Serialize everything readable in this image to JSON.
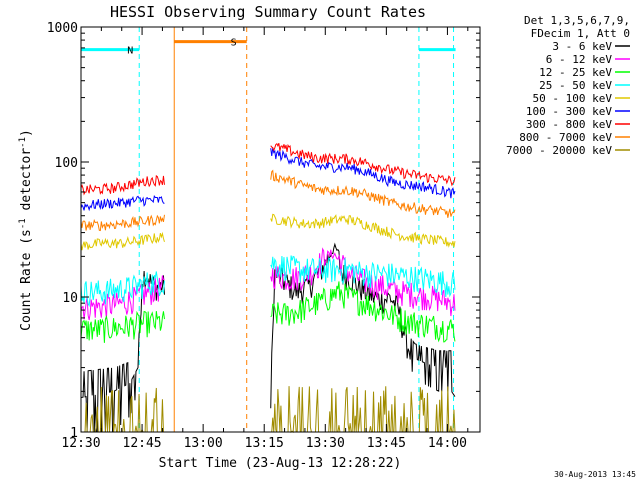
{
  "chart_data": {
    "type": "line",
    "title": "HESSI Observing Summary Count Rates",
    "xlabel": "Start Time (23-Aug-13 12:28:22)",
    "ylabel": "Count Rate (s",
    "ylabel_sup": "-1",
    "ylabel_tail": " detector",
    "ylabel_sup2": "-1",
    "ylabel_end": ")",
    "y_scale": "log",
    "ylim": [
      1,
      1000
    ],
    "xlim_minutes": [
      0,
      98
    ],
    "x_ticks": [
      {
        "label": "12:30",
        "m": 0
      },
      {
        "label": "12:45",
        "m": 15
      },
      {
        "label": "13:00",
        "m": 30
      },
      {
        "label": "13:15",
        "m": 45
      },
      {
        "label": "13:30",
        "m": 60
      },
      {
        "label": "13:45",
        "m": 75
      },
      {
        "label": "14:00",
        "m": 90
      }
    ],
    "y_ticks": [
      {
        "label": "1",
        "v": 1
      },
      {
        "label": "10",
        "v": 10
      },
      {
        "label": "100",
        "v": 100
      },
      {
        "label": "1000",
        "v": 1000
      }
    ],
    "legend_header": [
      "Det 1,3,5,6,7,9,",
      "FDecim 1, Att 0"
    ],
    "legend_placement": "right",
    "footer_date": "30-Aug-2013 13:45",
    "flags": [
      {
        "label": "N",
        "color": "#00ffff",
        "segments": [
          [
            0,
            14.3
          ],
          [
            83,
            92
          ]
        ],
        "level": 680
      },
      {
        "label": "S",
        "color": "#ff8000",
        "segments": [
          [
            22.9,
            40.7
          ]
        ],
        "level": 780
      }
    ],
    "night_bounds": [
      {
        "m": 14.3,
        "color": "#00ffff"
      },
      {
        "m": 83.0,
        "color": "#00ffff"
      },
      {
        "m": 91.5,
        "color": "#00ffff"
      },
      {
        "m": 40.7,
        "color": "#ff8000"
      }
    ],
    "saa_solid": [
      22.9
    ],
    "gap_minutes": [
      22.9,
      46.6
    ],
    "series": [
      {
        "name": "3 - 6 keV",
        "color": "#000000",
        "pre": [
          [
            0,
            1.8
          ],
          [
            8,
            2.0
          ],
          [
            12,
            2.3
          ],
          [
            14,
            3.0
          ],
          [
            15,
            14
          ],
          [
            16,
            15
          ],
          [
            17,
            13
          ],
          [
            18,
            12
          ],
          [
            19,
            12
          ],
          [
            20.5,
            12
          ]
        ],
        "post": [
          [
            46.6,
            1.5
          ],
          [
            47.5,
            15
          ],
          [
            50,
            13
          ],
          [
            53,
            11
          ],
          [
            56,
            12
          ],
          [
            59,
            16
          ],
          [
            61,
            20
          ],
          [
            62,
            23
          ],
          [
            63,
            22
          ],
          [
            64,
            15
          ],
          [
            66,
            14
          ],
          [
            68,
            12
          ],
          [
            70,
            11
          ],
          [
            72,
            10
          ],
          [
            74,
            9.5
          ],
          [
            76,
            10
          ],
          [
            78,
            8
          ],
          [
            80,
            4.5
          ],
          [
            82,
            3.5
          ],
          [
            85,
            3.2
          ],
          [
            88,
            3.0
          ],
          [
            91,
            3.0
          ],
          [
            92,
            2.8
          ]
        ]
      },
      {
        "name": "6 - 12 keV",
        "color": "#ff00ff",
        "pre": [
          [
            0,
            8.5
          ],
          [
            5,
            8.5
          ],
          [
            10,
            9
          ],
          [
            14,
            10
          ],
          [
            17,
            11
          ],
          [
            20.5,
            12
          ]
        ],
        "post": [
          [
            46.6,
            15
          ],
          [
            50,
            14
          ],
          [
            53,
            14
          ],
          [
            56,
            15
          ],
          [
            58,
            17
          ],
          [
            60,
            20
          ],
          [
            62,
            21
          ],
          [
            64,
            18
          ],
          [
            66,
            15
          ],
          [
            70,
            13
          ],
          [
            74,
            12
          ],
          [
            78,
            11
          ],
          [
            82,
            10.5
          ],
          [
            86,
            10
          ],
          [
            89,
            9.5
          ],
          [
            92,
            9
          ]
        ]
      },
      {
        "name": "12 - 25 keV",
        "color": "#00ff00",
        "pre": [
          [
            0,
            5.8
          ],
          [
            5,
            5.8
          ],
          [
            10,
            6
          ],
          [
            14,
            6.3
          ],
          [
            17,
            6.5
          ],
          [
            20.5,
            6.5
          ]
        ],
        "post": [
          [
            46.6,
            7.5
          ],
          [
            50,
            7.5
          ],
          [
            54,
            8
          ],
          [
            58,
            9
          ],
          [
            61,
            10
          ],
          [
            63,
            11
          ],
          [
            66,
            10
          ],
          [
            70,
            9
          ],
          [
            74,
            8
          ],
          [
            78,
            7
          ],
          [
            82,
            6.5
          ],
          [
            86,
            6.2
          ],
          [
            89,
            6
          ],
          [
            92,
            5.8
          ]
        ]
      },
      {
        "name": "25 - 50 keV",
        "color": "#00ffff",
        "pre": [
          [
            0,
            11
          ],
          [
            5,
            11
          ],
          [
            10,
            11.5
          ],
          [
            14,
            12
          ],
          [
            17,
            13
          ],
          [
            20.5,
            13
          ]
        ],
        "post": [
          [
            46.6,
            18
          ],
          [
            50,
            17
          ],
          [
            54,
            16
          ],
          [
            58,
            16
          ],
          [
            62,
            16
          ],
          [
            66,
            16
          ],
          [
            70,
            15
          ],
          [
            74,
            15
          ],
          [
            78,
            14.5
          ],
          [
            82,
            14
          ],
          [
            86,
            13.5
          ],
          [
            89,
            13
          ],
          [
            92,
            12.5
          ]
        ]
      },
      {
        "name": "50 - 100 keV",
        "color": "#e0c800",
        "pre": [
          [
            0,
            24
          ],
          [
            5,
            25
          ],
          [
            10,
            25
          ],
          [
            14,
            26
          ],
          [
            17,
            27
          ],
          [
            20.5,
            28
          ]
        ],
        "post": [
          [
            46.6,
            38
          ],
          [
            50,
            37
          ],
          [
            54,
            35
          ],
          [
            58,
            35
          ],
          [
            62,
            37
          ],
          [
            65,
            38
          ],
          [
            68,
            36
          ],
          [
            72,
            33
          ],
          [
            76,
            30
          ],
          [
            80,
            28
          ],
          [
            84,
            27
          ],
          [
            88,
            26
          ],
          [
            92,
            25
          ]
        ]
      },
      {
        "name": "100 - 300 keV",
        "color": "#0000ff",
        "pre": [
          [
            0,
            47
          ],
          [
            5,
            49
          ],
          [
            10,
            50
          ],
          [
            14,
            52
          ],
          [
            17,
            52
          ],
          [
            20.5,
            52
          ]
        ],
        "post": [
          [
            46.6,
            118
          ],
          [
            50,
            110
          ],
          [
            54,
            100
          ],
          [
            58,
            93
          ],
          [
            62,
            92
          ],
          [
            65,
            92
          ],
          [
            68,
            88
          ],
          [
            72,
            80
          ],
          [
            76,
            72
          ],
          [
            80,
            68
          ],
          [
            84,
            66
          ],
          [
            88,
            62
          ],
          [
            92,
            58
          ]
        ]
      },
      {
        "name": "300 - 800 keV",
        "color": "#ff0000",
        "pre": [
          [
            0,
            62
          ],
          [
            5,
            63
          ],
          [
            8,
            64
          ],
          [
            11,
            67
          ],
          [
            14,
            70
          ],
          [
            17,
            73
          ],
          [
            20.5,
            74
          ]
        ],
        "post": [
          [
            46.6,
            132
          ],
          [
            50,
            125
          ],
          [
            54,
            114
          ],
          [
            58,
            107
          ],
          [
            62,
            106
          ],
          [
            65,
            106
          ],
          [
            68,
            102
          ],
          [
            72,
            95
          ],
          [
            76,
            87
          ],
          [
            80,
            82
          ],
          [
            84,
            78
          ],
          [
            88,
            75
          ],
          [
            92,
            72
          ]
        ]
      },
      {
        "name": "800 - 7000 keV",
        "color": "#ff8000",
        "pre": [
          [
            0,
            34
          ],
          [
            5,
            34
          ],
          [
            10,
            35
          ],
          [
            14,
            36
          ],
          [
            17,
            37
          ],
          [
            20.5,
            38
          ]
        ],
        "post": [
          [
            46.6,
            80
          ],
          [
            50,
            75
          ],
          [
            54,
            68
          ],
          [
            58,
            63
          ],
          [
            62,
            62
          ],
          [
            65,
            62
          ],
          [
            68,
            60
          ],
          [
            72,
            55
          ],
          [
            76,
            50
          ],
          [
            80,
            47
          ],
          [
            84,
            45
          ],
          [
            88,
            43
          ],
          [
            92,
            41
          ]
        ]
      },
      {
        "name": "7000 - 20000 keV",
        "color": "#a08c00",
        "pre": [
          [
            0,
            1.0
          ],
          [
            20.5,
            1.0
          ]
        ],
        "post": [
          [
            46.6,
            1.0
          ],
          [
            92,
            1.0
          ]
        ]
      }
    ]
  }
}
